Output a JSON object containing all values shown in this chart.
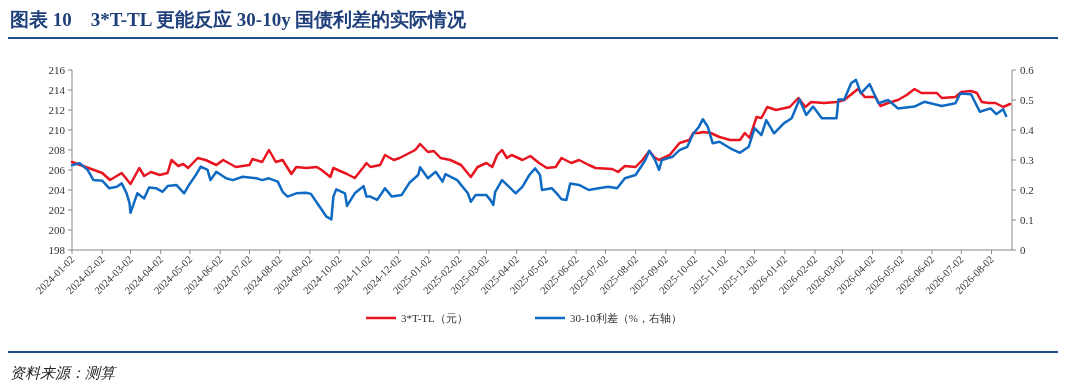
{
  "chart_data": {
    "type": "line",
    "title": "图表 10　3*T-TL 更能反应 30-10y 国债利差的实际情况",
    "annotations": [
      "资料来源：测算"
    ],
    "xlim": [
      "2024-01-02",
      "2026-08-23"
    ],
    "xticks": [
      "2024-01-02",
      "2024-02-02",
      "2024-03-02",
      "2024-04-02",
      "2024-05-02",
      "2024-06-02",
      "2024-07-02",
      "2024-08-02",
      "2024-09-02",
      "2024-10-02",
      "2024-11-02",
      "2024-12-02",
      "2025-01-02",
      "2025-02-02",
      "2025-03-02",
      "2025-04-02",
      "2025-05-02",
      "2025-06-02",
      "2025-07-02",
      "2025-08-02",
      "2025-09-02",
      "2025-10-02",
      "2025-11-02",
      "2025-12-02",
      "2026-01-02",
      "2026-02-02",
      "2026-03-02",
      "2026-04-02",
      "2026-05-02",
      "2026-06-02",
      "2026-07-02",
      "2026-08-02"
    ],
    "ylim": [
      198,
      216
    ],
    "yticks": [
      198,
      200,
      202,
      204,
      206,
      208,
      210,
      212,
      214,
      216
    ],
    "y2lim": [
      0,
      0.6
    ],
    "y2ticks": [
      0,
      0.1,
      0.2,
      0.3,
      0.4,
      0.5,
      0.6
    ],
    "grid": false,
    "legend": "bottom",
    "line_style": "solid",
    "marker": "none",
    "series": [
      {
        "name": "3*T-TL（元）",
        "color": "#e8141f",
        "x": [
          "2024-01-02",
          "2024-02-02",
          "2024-02-10",
          "2024-02-22",
          "2024-03-02",
          "2024-03-11",
          "2024-03-16",
          "2024-03-23",
          "2024-04-01",
          "2024-04-09",
          "2024-04-13",
          "2024-04-20",
          "2024-04-25",
          "2024-04-30",
          "2024-05-10",
          "2024-05-18",
          "2024-05-29",
          "2024-06-05",
          "2024-06-18",
          "2024-07-02",
          "2024-07-05",
          "2024-07-15",
          "2024-07-22",
          "2024-07-29",
          "2024-08-05",
          "2024-08-14",
          "2024-08-19",
          "2024-08-29",
          "2024-09-09",
          "2024-09-14",
          "2024-09-23",
          "2024-09-26",
          "2024-10-10",
          "2024-10-18",
          "2024-10-27",
          "2024-10-30",
          "2024-11-03",
          "2024-11-13",
          "2024-11-18",
          "2024-11-27",
          "2024-12-03",
          "2024-12-19",
          "2024-12-24",
          "2025-01-01",
          "2025-01-07",
          "2025-01-14",
          "2025-01-24",
          "2025-02-04",
          "2025-02-14",
          "2025-02-21",
          "2025-03-02",
          "2025-03-08",
          "2025-03-13",
          "2025-03-18",
          "2025-03-23",
          "2025-03-28",
          "2025-04-08",
          "2025-04-16",
          "2025-04-25",
          "2025-05-03",
          "2025-05-12",
          "2025-05-18",
          "2025-05-28",
          "2025-06-05",
          "2025-06-15",
          "2025-06-22",
          "2025-07-09",
          "2025-07-15",
          "2025-07-22",
          "2025-08-02",
          "2025-08-09",
          "2025-08-16",
          "2025-08-21",
          "2025-08-26",
          "2025-09-06",
          "2025-09-16",
          "2025-09-26",
          "2025-09-30",
          "2025-10-06",
          "2025-10-10",
          "2025-10-18",
          "2025-10-27",
          "2025-11-07",
          "2025-11-17",
          "2025-11-22",
          "2025-11-27",
          "2025-12-04",
          "2025-12-09",
          "2025-12-15",
          "2025-12-24",
          "2026-01-07",
          "2026-01-16",
          "2026-01-23",
          "2026-01-29",
          "2026-02-11",
          "2026-02-24",
          "2026-03-04",
          "2026-03-18",
          "2026-03-25",
          "2026-04-05",
          "2026-04-10",
          "2026-04-18",
          "2026-04-28",
          "2026-05-07",
          "2026-05-15",
          "2026-05-22",
          "2026-06-07",
          "2026-06-12",
          "2026-06-26",
          "2026-07-02",
          "2026-07-12",
          "2026-07-18",
          "2026-07-23",
          "2026-07-30",
          "2026-08-06",
          "2026-08-14",
          "2026-08-21"
        ],
        "values": [
          206.8,
          205.7,
          205.0,
          205.7,
          204.6,
          206.2,
          205.4,
          205.8,
          205.5,
          205.7,
          207.0,
          206.4,
          206.6,
          206.2,
          207.2,
          207.0,
          206.5,
          207.0,
          206.3,
          206.5,
          207.1,
          206.8,
          208.0,
          206.8,
          207.0,
          205.6,
          206.3,
          206.2,
          206.3,
          206.0,
          205.3,
          206.2,
          205.6,
          205.2,
          206.3,
          206.7,
          206.3,
          206.5,
          207.5,
          207.0,
          207.2,
          208.0,
          208.6,
          207.8,
          207.9,
          207.2,
          207.0,
          206.5,
          205.3,
          206.3,
          206.7,
          206.3,
          207.5,
          208.0,
          207.2,
          207.5,
          207.0,
          207.4,
          206.7,
          206.2,
          206.3,
          207.2,
          206.7,
          207.0,
          206.5,
          206.2,
          206.1,
          205.8,
          206.4,
          206.3,
          207.0,
          207.9,
          207.3,
          207.0,
          207.5,
          208.7,
          209.0,
          209.7,
          209.7,
          209.8,
          209.7,
          209.3,
          209.0,
          209.0,
          209.7,
          209.2,
          211.3,
          211.2,
          212.3,
          212.0,
          212.3,
          213.2,
          212.3,
          212.8,
          212.7,
          212.8,
          213.0,
          214.1,
          213.3,
          213.3,
          212.4,
          212.7,
          213.0,
          213.5,
          214.1,
          213.7,
          213.7,
          213.2,
          213.3,
          213.8,
          213.9,
          213.7,
          212.8,
          212.7,
          212.7,
          212.3,
          212.6
        ]
      },
      {
        "name": "30-10利差（%，右轴）",
        "color": "#0e6ac3",
        "axis": "y2",
        "x": [
          "2024-01-02",
          "2024-01-10",
          "2024-01-18",
          "2024-01-24",
          "2024-02-02",
          "2024-02-09",
          "2024-02-17",
          "2024-02-22",
          "2024-02-27",
          "2024-03-01",
          "2024-03-02",
          "2024-03-09",
          "2024-03-16",
          "2024-03-21",
          "2024-03-28",
          "2024-04-04",
          "2024-04-09",
          "2024-04-18",
          "2024-04-26",
          "2024-05-01",
          "2024-05-08",
          "2024-05-13",
          "2024-05-20",
          "2024-05-23",
          "2024-05-29",
          "2024-06-08",
          "2024-06-15",
          "2024-06-25",
          "2024-07-09",
          "2024-07-15",
          "2024-07-22",
          "2024-07-31",
          "2024-08-05",
          "2024-08-10",
          "2024-08-19",
          "2024-08-29",
          "2024-09-03",
          "2024-09-12",
          "2024-09-19",
          "2024-09-24",
          "2024-09-26",
          "2024-09-29",
          "2024-10-08",
          "2024-10-10",
          "2024-10-18",
          "2024-10-27",
          "2024-10-30",
          "2024-11-03",
          "2024-11-10",
          "2024-11-18",
          "2024-11-25",
          "2024-12-05",
          "2024-12-13",
          "2024-12-22",
          "2024-12-24",
          "2025-01-01",
          "2025-01-09",
          "2025-01-16",
          "2025-01-19",
          "2025-01-31",
          "2025-02-11",
          "2025-02-14",
          "2025-02-19",
          "2025-03-02",
          "2025-03-06",
          "2025-03-09",
          "2025-03-11",
          "2025-03-18",
          "2025-03-25",
          "2025-04-01",
          "2025-04-08",
          "2025-04-15",
          "2025-04-21",
          "2025-04-26",
          "2025-04-28",
          "2025-05-08",
          "2025-05-13",
          "2025-05-18",
          "2025-05-23",
          "2025-05-27",
          "2025-06-05",
          "2025-06-15",
          "2025-06-25",
          "2025-07-05",
          "2025-07-14",
          "2025-07-22",
          "2025-08-02",
          "2025-08-12",
          "2025-08-16",
          "2025-08-22",
          "2025-08-26",
          "2025-08-29",
          "2025-09-09",
          "2025-09-16",
          "2025-09-24",
          "2025-09-30",
          "2025-10-06",
          "2025-10-10",
          "2025-10-15",
          "2025-10-20",
          "2025-10-27",
          "2025-11-07",
          "2025-11-17",
          "2025-11-26",
          "2025-12-02",
          "2025-12-09",
          "2025-12-14",
          "2025-12-22",
          "2026-01-01",
          "2026-01-09",
          "2026-01-17",
          "2026-01-24",
          "2026-01-31",
          "2026-02-09",
          "2026-02-24",
          "2026-02-26",
          "2026-03-04",
          "2026-03-11",
          "2026-03-16",
          "2026-03-21",
          "2026-03-30",
          "2026-04-08",
          "2026-04-18",
          "2026-04-28",
          "2026-05-15",
          "2026-05-25",
          "2026-06-12",
          "2026-06-26",
          "2026-07-01",
          "2026-07-12",
          "2026-07-21",
          "2026-08-01",
          "2026-08-07",
          "2026-08-14",
          "2026-08-17"
        ],
        "values": [
          0.283,
          0.289,
          0.267,
          0.233,
          0.231,
          0.206,
          0.211,
          0.222,
          0.189,
          0.156,
          0.124,
          0.189,
          0.172,
          0.208,
          0.206,
          0.194,
          0.213,
          0.217,
          0.189,
          0.217,
          0.25,
          0.278,
          0.267,
          0.233,
          0.261,
          0.239,
          0.233,
          0.244,
          0.239,
          0.233,
          0.239,
          0.228,
          0.194,
          0.178,
          0.189,
          0.191,
          0.187,
          0.144,
          0.111,
          0.102,
          0.178,
          0.202,
          0.189,
          0.147,
          0.189,
          0.213,
          0.178,
          0.178,
          0.167,
          0.206,
          0.178,
          0.183,
          0.224,
          0.25,
          0.276,
          0.239,
          0.261,
          0.228,
          0.253,
          0.233,
          0.189,
          0.161,
          0.183,
          0.183,
          0.167,
          0.15,
          0.194,
          0.233,
          0.211,
          0.189,
          0.211,
          0.25,
          0.272,
          0.25,
          0.2,
          0.206,
          0.189,
          0.169,
          0.167,
          0.222,
          0.217,
          0.2,
          0.206,
          0.211,
          0.206,
          0.239,
          0.25,
          0.3,
          0.331,
          0.3,
          0.267,
          0.3,
          0.311,
          0.333,
          0.344,
          0.387,
          0.411,
          0.436,
          0.411,
          0.356,
          0.361,
          0.339,
          0.324,
          0.344,
          0.406,
          0.383,
          0.433,
          0.389,
          0.422,
          0.439,
          0.502,
          0.45,
          0.478,
          0.439,
          0.439,
          0.502,
          0.502,
          0.556,
          0.567,
          0.522,
          0.553,
          0.489,
          0.5,
          0.472,
          0.478,
          0.494,
          0.48,
          0.489,
          0.522,
          0.519,
          0.461,
          0.472,
          0.453,
          0.469,
          0.447
        ]
      }
    ]
  }
}
